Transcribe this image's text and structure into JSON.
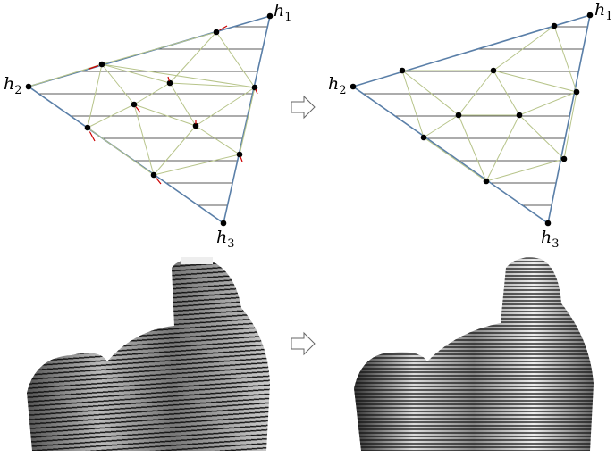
{
  "figure": {
    "top_left": {
      "vertex_labels": [
        {
          "symbol": "h",
          "index": "1"
        },
        {
          "symbol": "h",
          "index": "2"
        },
        {
          "symbol": "h",
          "index": "3"
        }
      ]
    },
    "top_right": {
      "vertex_labels": [
        {
          "symbol": "h",
          "index": "1"
        },
        {
          "symbol": "h",
          "index": "2"
        },
        {
          "symbol": "h",
          "index": "3"
        }
      ]
    }
  }
}
